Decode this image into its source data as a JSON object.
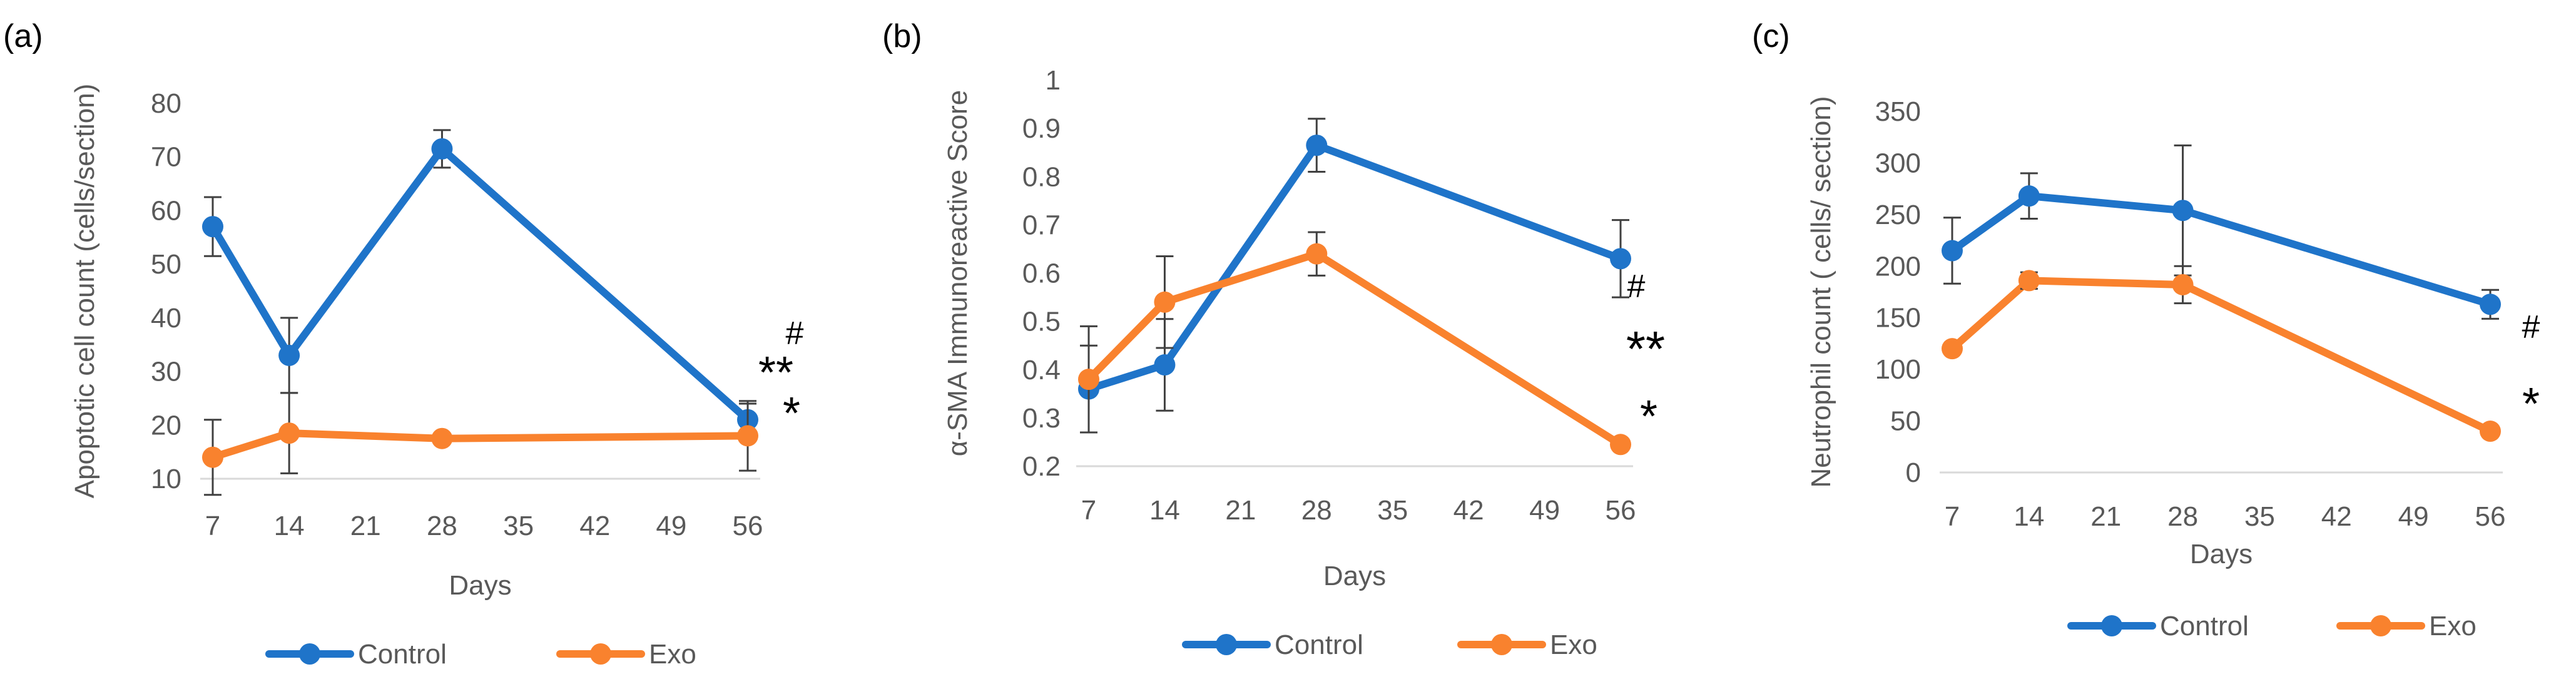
{
  "figure": {
    "colors": {
      "control": "#1f74c9",
      "exo": "#f9822e",
      "errorbar": "#404040",
      "text": "#595959",
      "axis": "#d9d9d9"
    }
  },
  "chart_data": [
    {
      "panel_label": "(a)",
      "type": "line",
      "x": [
        7,
        14,
        28,
        56
      ],
      "xticks": [
        "7",
        "14",
        "21",
        "28",
        "35",
        "42",
        "49",
        "56"
      ],
      "xlim": [
        7,
        56
      ],
      "ylim": [
        10,
        80
      ],
      "yticks": [
        "10",
        "20",
        "30",
        "40",
        "50",
        "60",
        "70",
        "80"
      ],
      "xlabel": "Days",
      "ylabel": "Apoptotic cell count (cells/section)",
      "series": [
        {
          "name": "Control",
          "values": [
            57,
            33,
            71.5,
            21
          ],
          "errors": [
            5.5,
            7,
            3.5,
            3
          ]
        },
        {
          "name": "Exo",
          "values": [
            14,
            18.5,
            17.5,
            18
          ],
          "errors": [
            7,
            7.5,
            0,
            6.5
          ]
        }
      ],
      "annotations": [
        {
          "text": "#"
        },
        {
          "text": "**"
        },
        {
          "text": "*"
        }
      ]
    },
    {
      "panel_label": "(b)",
      "type": "line",
      "x": [
        7,
        14,
        28,
        56
      ],
      "xticks": [
        "7",
        "14",
        "21",
        "28",
        "35",
        "42",
        "49",
        "56"
      ],
      "xlim": [
        7,
        56
      ],
      "ylim": [
        0.2,
        1
      ],
      "yticks": [
        "0.2",
        "0.3",
        "0.4",
        "0.5",
        "0.6",
        "0.7",
        "0.8",
        "0.9",
        "1"
      ],
      "xlabel": "Days",
      "ylabel": "α-SMA Immunoreactive Score",
      "series": [
        {
          "name": "Control",
          "values": [
            0.36,
            0.41,
            0.865,
            0.63
          ],
          "errors": [
            0.09,
            0.095,
            0.055,
            0.08
          ]
        },
        {
          "name": "Exo",
          "values": [
            0.38,
            0.54,
            0.64,
            0.245
          ],
          "errors": [
            0.11,
            0.095,
            0.045,
            0
          ]
        }
      ],
      "annotations": [
        {
          "text": "#"
        },
        {
          "text": "**"
        },
        {
          "text": "*"
        }
      ]
    },
    {
      "panel_label": "(c)",
      "type": "line",
      "x": [
        7,
        14,
        28,
        56
      ],
      "xticks": [
        "7",
        "14",
        "21",
        "28",
        "35",
        "42",
        "49",
        "56"
      ],
      "xlim": [
        7,
        56
      ],
      "ylim": [
        0,
        350
      ],
      "yticks": [
        "0",
        "50",
        "100",
        "150",
        "200",
        "250",
        "300",
        "350"
      ],
      "xlabel": "Days",
      "ylabel": "Neutrophil count ( cells/ section)",
      "series": [
        {
          "name": "Control",
          "values": [
            215,
            268,
            254,
            163
          ],
          "errors": [
            32,
            22,
            63,
            14
          ]
        },
        {
          "name": "Exo",
          "values": [
            120,
            186,
            182,
            40
          ],
          "errors": [
            0,
            8,
            18,
            0
          ]
        }
      ],
      "annotations": [
        {
          "text": "#"
        },
        {
          "text": "*"
        }
      ]
    }
  ]
}
